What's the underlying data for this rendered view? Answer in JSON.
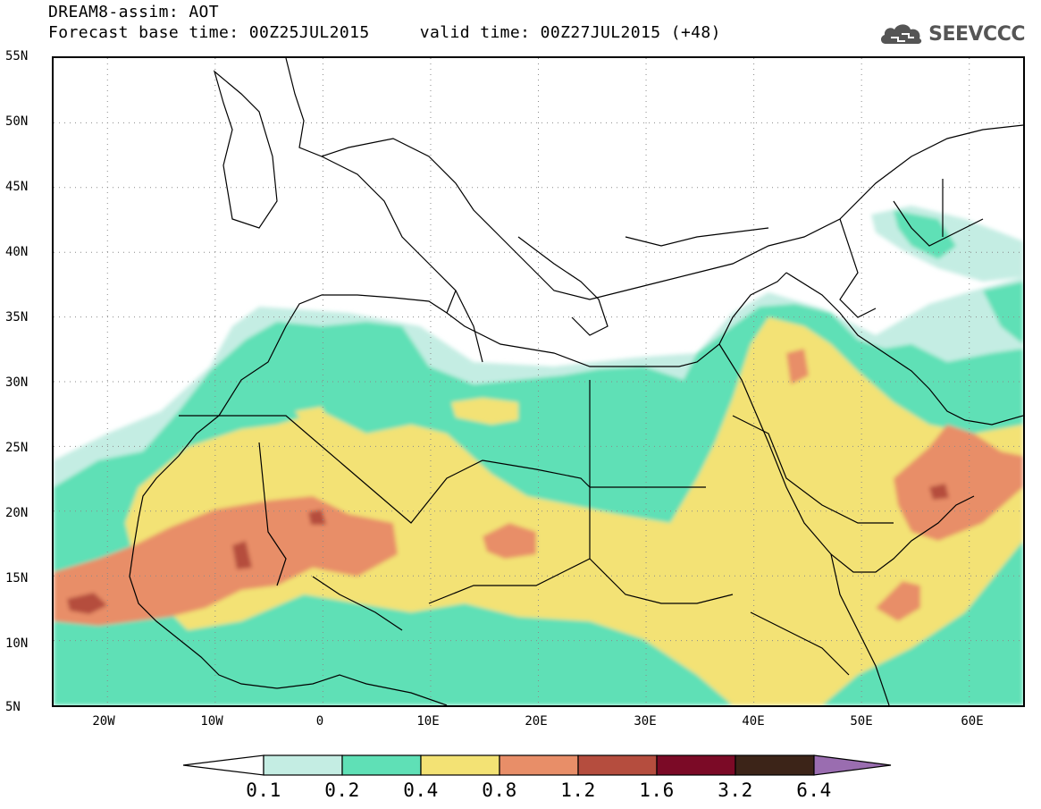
{
  "header": {
    "title": "DREAM8-assim: AOT",
    "base_label": "Forecast base time: 00Z25JUL2015",
    "valid_label": "valid time: 00Z27JUL2015 (+48)",
    "brand": "SEEVCCC"
  },
  "map": {
    "variable": "AOT",
    "lon_range": [
      -25,
      65
    ],
    "lat_range": [
      5,
      55
    ],
    "lat_labels": [
      "55N",
      "50N",
      "45N",
      "40N",
      "35N",
      "30N",
      "25N",
      "20N",
      "15N",
      "10N",
      "5N"
    ],
    "lon_labels": [
      "20W",
      "10W",
      "0",
      "10E",
      "20E",
      "30E",
      "40E",
      "50E",
      "60E"
    ],
    "grid": "dotted"
  },
  "colorbar": {
    "labels": [
      "0.1",
      "0.2",
      "0.4",
      "0.8",
      "1.2",
      "1.6",
      "3.2",
      "6.4"
    ],
    "colors": {
      "below": "#ffffff",
      "c1": "#c4ede3",
      "c2": "#5fe0b6",
      "c3": "#f3e274",
      "c4": "#e88e68",
      "c5": "#b54d3e",
      "c6": "#7b0a26",
      "c7": "#3c2418",
      "above": "#9a6db0"
    }
  }
}
